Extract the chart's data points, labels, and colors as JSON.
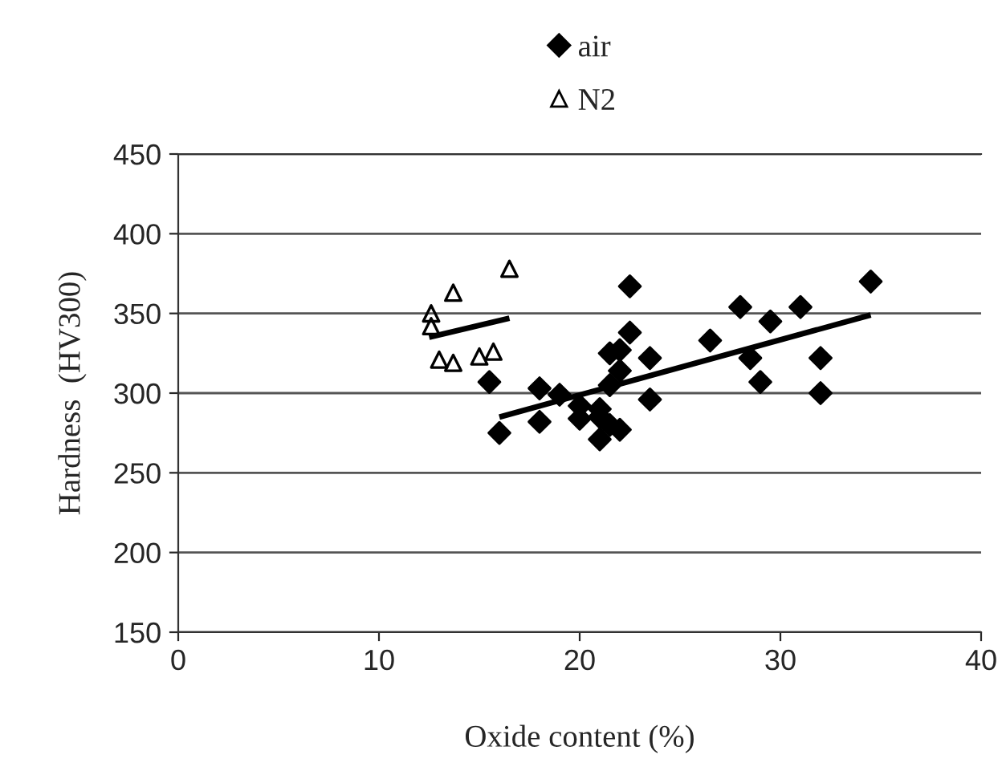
{
  "chart_data": {
    "type": "scatter",
    "xlabel": "Oxide content (%)",
    "ylabel": "Hardness  (HV300)",
    "xlim": [
      0,
      40
    ],
    "xticks": [
      0,
      10,
      20,
      30,
      40
    ],
    "ylim": [
      150,
      450
    ],
    "yticks": [
      150,
      200,
      250,
      300,
      350,
      400,
      450
    ],
    "grid": "y",
    "legend": "top",
    "series": [
      {
        "name": "air",
        "color": "#000000",
        "marker": "diamond",
        "x": [
          15.5,
          16,
          18,
          18,
          19,
          20,
          20,
          21,
          21,
          21,
          21.5,
          21.5,
          21.5,
          22,
          22,
          22,
          22.5,
          22.5,
          23.5,
          23.5,
          26.5,
          28,
          28.5,
          29,
          29.5,
          31,
          32,
          32,
          34.5
        ],
        "values": [
          307,
          275,
          282,
          303,
          299,
          292,
          284,
          290,
          271,
          285,
          325,
          305,
          280,
          327,
          314,
          277,
          338,
          367,
          322,
          296,
          333,
          354,
          322,
          307,
          345,
          354,
          322,
          300,
          370
        ]
      },
      {
        "name": "N2",
        "color": "#000000",
        "marker": "triangle",
        "x": [
          12.6,
          12.6,
          13.7,
          16.5,
          13.0,
          13.7,
          15.0,
          15.7
        ],
        "values": [
          350,
          342,
          363,
          378,
          321,
          319,
          323,
          326
        ]
      },
      {
        "type": "line",
        "color": "#000000",
        "marker": "none",
        "x": [
          16,
          34.5
        ],
        "values": [
          285,
          349
        ]
      },
      {
        "type": "line",
        "color": "#000000",
        "marker": "none",
        "x": [
          12.5,
          16.5
        ],
        "values": [
          335,
          347
        ]
      }
    ]
  }
}
